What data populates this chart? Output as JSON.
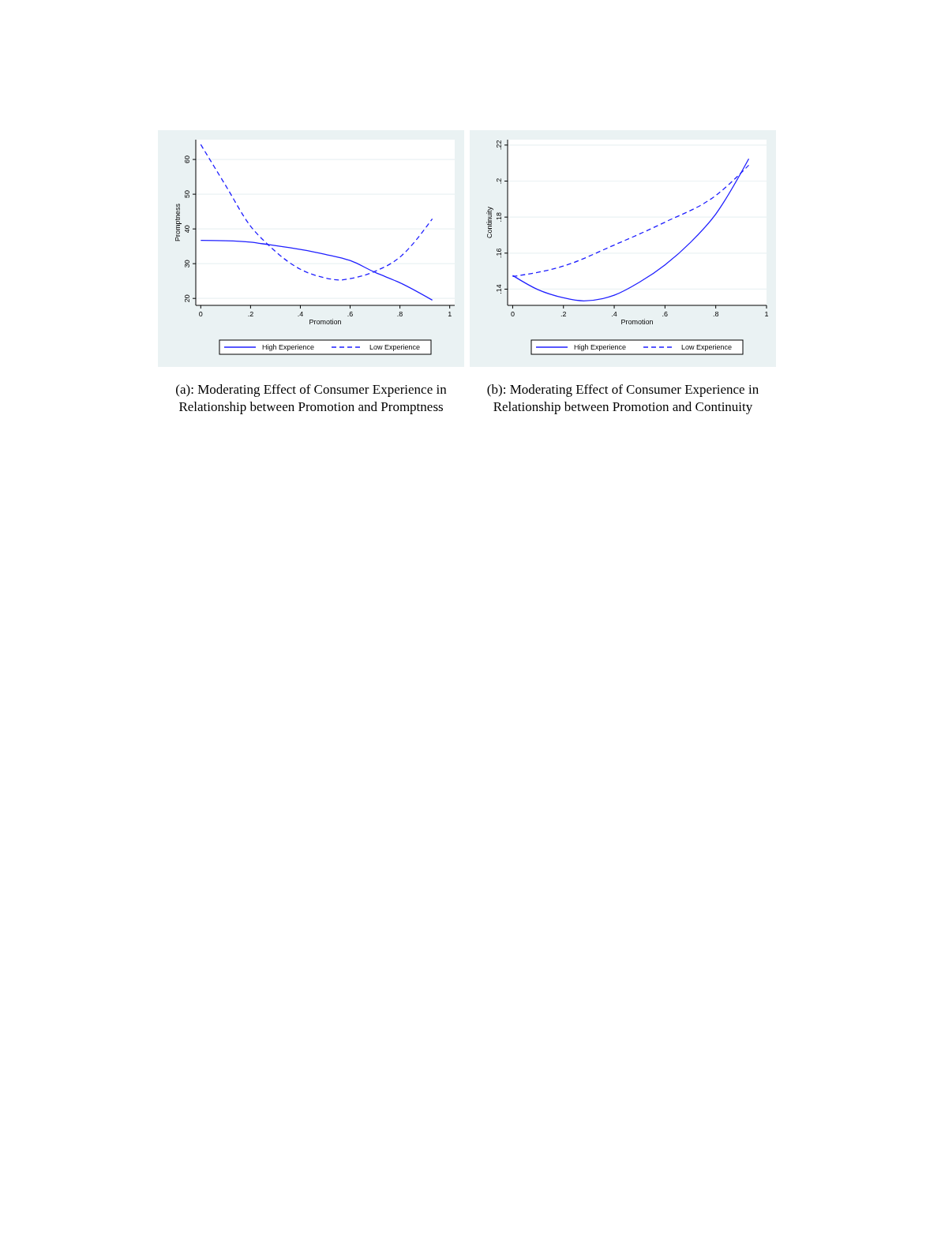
{
  "chart_data": [
    {
      "type": "line",
      "title": "(a): Moderating Effect of Consumer Experience in Relationship between Promotion and Promptness",
      "xlabel": "Promotion",
      "ylabel": "Promptness",
      "xlim": [
        -0.02,
        1.02
      ],
      "ylim": [
        18,
        65.7
      ],
      "xticks": [
        {
          "value": 0,
          "label": "0"
        },
        {
          "value": 0.2,
          "label": ".2"
        },
        {
          "value": 0.4,
          "label": ".4"
        },
        {
          "value": 0.6,
          "label": ".6"
        },
        {
          "value": 0.8,
          "label": ".8"
        },
        {
          "value": 1,
          "label": "1"
        }
      ],
      "yticks": [
        20,
        30,
        40,
        50,
        60
      ],
      "grid": "y",
      "legend": "bottom",
      "series": [
        {
          "name": "High Experience",
          "color": "#1f1fff",
          "line_style": "solid",
          "x": [
            0,
            0.1,
            0.2,
            0.27,
            0.4,
            0.5,
            0.6,
            0.7,
            0.8,
            0.93
          ],
          "values": [
            36.7,
            36.6,
            36.2,
            35.5,
            34.1,
            32.7,
            30.9,
            27.5,
            24.5,
            19.5
          ]
        },
        {
          "name": "Low Experience",
          "color": "#1f1fff",
          "line_style": "dashed",
          "x": [
            0,
            0.1,
            0.2,
            0.27,
            0.3,
            0.4,
            0.5,
            0.56,
            0.6,
            0.7,
            0.8,
            0.93
          ],
          "values": [
            64.3,
            52.5,
            40.8,
            35.5,
            33.5,
            28.4,
            25.9,
            25.3,
            25.7,
            27.8,
            31.9,
            42.9
          ]
        }
      ]
    },
    {
      "type": "line",
      "title": "(b): Moderating Effect of Consumer Experience in Relationship between Promotion and Continuity",
      "xlabel": "Promotion",
      "ylabel": "Continuity",
      "xlim": [
        -0.02,
        1.0
      ],
      "ylim": [
        0.131,
        0.223
      ],
      "xticks": [
        {
          "value": 0,
          "label": "0"
        },
        {
          "value": 0.2,
          "label": ".2"
        },
        {
          "value": 0.4,
          "label": ".4"
        },
        {
          "value": 0.6,
          "label": ".6"
        },
        {
          "value": 0.8,
          "label": ".8"
        },
        {
          "value": 1,
          "label": "1"
        }
      ],
      "yticks": [
        {
          "value": 0.14,
          "label": ".14"
        },
        {
          "value": 0.16,
          "label": ".16"
        },
        {
          "value": 0.18,
          "label": ".18"
        },
        {
          "value": 0.2,
          "label": ".2"
        },
        {
          "value": 0.22,
          "label": ".22"
        }
      ],
      "grid": "y",
      "legend": "bottom",
      "series": [
        {
          "name": "High Experience",
          "color": "#1f1fff",
          "line_style": "solid",
          "x": [
            0,
            0.1,
            0.2,
            0.28,
            0.4,
            0.5,
            0.6,
            0.7,
            0.8,
            0.93
          ],
          "values": [
            0.1476,
            0.1397,
            0.1352,
            0.1335,
            0.1366,
            0.1439,
            0.1535,
            0.1659,
            0.1817,
            0.2124
          ]
        },
        {
          "name": "Low Experience",
          "color": "#1f1fff",
          "line_style": "dashed",
          "x": [
            0,
            0.2,
            0.4,
            0.6,
            0.8,
            0.93
          ],
          "values": [
            0.147,
            0.1528,
            0.1645,
            0.1772,
            0.192,
            0.2088
          ]
        }
      ]
    }
  ]
}
